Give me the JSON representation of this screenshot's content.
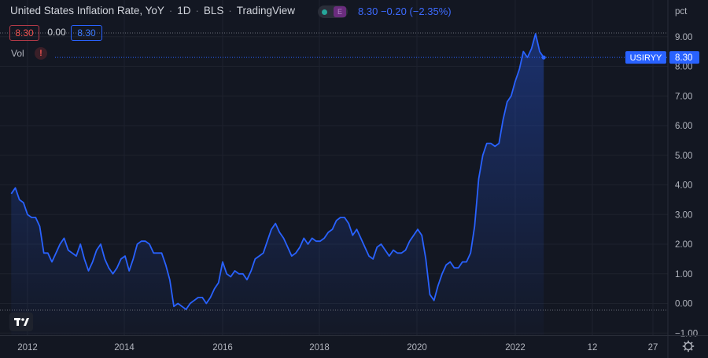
{
  "header": {
    "title": "United States Inflation Rate, YoY",
    "interval": "1D",
    "source": "BLS",
    "platform": "TradingView",
    "status_e": "E",
    "last_value": "8.30",
    "change": "−0.20",
    "change_pct": "(−2.35%)"
  },
  "legend_boxes": {
    "red": "8.30",
    "mid": "0.00",
    "blue": "8.30"
  },
  "vol_label": "Vol",
  "vol_warn": "!",
  "colors": {
    "background": "#131722",
    "line": "#2962ff",
    "axis_text": "#b2b5be",
    "grid": "#1e222d"
  },
  "chart_data": {
    "type": "area",
    "symbol": "USIRYY",
    "unit_label": "pct",
    "last_value_label": "8.30",
    "y_ticks": [
      "9.00",
      "8.00",
      "7.00",
      "6.00",
      "5.00",
      "4.00",
      "3.00",
      "2.00",
      "1.00",
      "0.00",
      "−1.00"
    ],
    "ylim": [
      -1.2,
      9.6
    ],
    "x_ticks": [
      "2012",
      "2014",
      "2016",
      "2018",
      "2020",
      "2022",
      "12",
      "27"
    ],
    "series": [
      {
        "x": [
          "2011-09",
          "2011-10",
          "2011-11",
          "2011-12",
          "2012-01",
          "2012-02",
          "2012-03",
          "2012-04",
          "2012-05",
          "2012-06",
          "2012-07",
          "2012-08",
          "2012-09",
          "2012-10",
          "2012-11",
          "2012-12",
          "2013-01",
          "2013-02",
          "2013-03",
          "2013-04",
          "2013-05",
          "2013-06",
          "2013-07",
          "2013-08",
          "2013-09",
          "2013-10",
          "2013-11",
          "2013-12",
          "2014-01",
          "2014-02",
          "2014-03",
          "2014-04",
          "2014-05",
          "2014-06",
          "2014-07",
          "2014-08",
          "2014-09",
          "2014-10",
          "2014-11",
          "2014-12",
          "2015-01",
          "2015-02",
          "2015-03",
          "2015-04",
          "2015-05",
          "2015-06",
          "2015-07",
          "2015-08",
          "2015-09",
          "2015-10",
          "2015-11",
          "2015-12",
          "2016-01",
          "2016-02",
          "2016-03",
          "2016-04",
          "2016-05",
          "2016-06",
          "2016-07",
          "2016-08",
          "2016-09",
          "2016-10",
          "2016-11",
          "2016-12",
          "2017-01",
          "2017-02",
          "2017-03",
          "2017-04",
          "2017-05",
          "2017-06",
          "2017-07",
          "2017-08",
          "2017-09",
          "2017-10",
          "2017-11",
          "2017-12",
          "2018-01",
          "2018-02",
          "2018-03",
          "2018-04",
          "2018-05",
          "2018-06",
          "2018-07",
          "2018-08",
          "2018-09",
          "2018-10",
          "2018-11",
          "2018-12",
          "2019-01",
          "2019-02",
          "2019-03",
          "2019-04",
          "2019-05",
          "2019-06",
          "2019-07",
          "2019-08",
          "2019-09",
          "2019-10",
          "2019-11",
          "2019-12",
          "2020-01",
          "2020-02",
          "2020-03",
          "2020-04",
          "2020-05",
          "2020-06",
          "2020-07",
          "2020-08",
          "2020-09",
          "2020-10",
          "2020-11",
          "2020-12",
          "2021-01",
          "2021-02",
          "2021-03",
          "2021-04",
          "2021-05",
          "2021-06",
          "2021-07",
          "2021-08",
          "2021-09",
          "2021-10",
          "2021-11",
          "2021-12",
          "2022-01",
          "2022-02",
          "2022-03",
          "2022-04",
          "2022-05",
          "2022-06",
          "2022-07",
          "2022-08"
        ],
        "values": [
          3.7,
          3.9,
          3.5,
          3.4,
          3.0,
          2.9,
          2.9,
          2.6,
          1.7,
          1.7,
          1.4,
          1.7,
          2.0,
          2.2,
          1.8,
          1.7,
          1.6,
          2.0,
          1.5,
          1.1,
          1.4,
          1.8,
          2.0,
          1.5,
          1.2,
          1.0,
          1.2,
          1.5,
          1.6,
          1.1,
          1.5,
          2.0,
          2.1,
          2.1,
          2.0,
          1.7,
          1.7,
          1.7,
          1.3,
          0.8,
          -0.1,
          0.0,
          -0.1,
          -0.2,
          0.0,
          0.1,
          0.2,
          0.2,
          0.0,
          0.2,
          0.5,
          0.7,
          1.4,
          1.0,
          0.9,
          1.1,
          1.0,
          1.0,
          0.8,
          1.1,
          1.5,
          1.6,
          1.7,
          2.1,
          2.5,
          2.7,
          2.4,
          2.2,
          1.9,
          1.6,
          1.7,
          1.9,
          2.2,
          2.0,
          2.2,
          2.1,
          2.1,
          2.2,
          2.4,
          2.5,
          2.8,
          2.9,
          2.9,
          2.7,
          2.3,
          2.5,
          2.2,
          1.9,
          1.6,
          1.5,
          1.9,
          2.0,
          1.8,
          1.6,
          1.8,
          1.7,
          1.7,
          1.8,
          2.1,
          2.3,
          2.5,
          2.3,
          1.5,
          0.3,
          0.1,
          0.6,
          1.0,
          1.3,
          1.4,
          1.2,
          1.2,
          1.4,
          1.4,
          1.7,
          2.6,
          4.2,
          5.0,
          5.4,
          5.4,
          5.3,
          5.4,
          6.2,
          6.8,
          7.0,
          7.5,
          7.9,
          8.5,
          8.3,
          8.6,
          9.1,
          8.5,
          8.3
        ]
      }
    ]
  }
}
